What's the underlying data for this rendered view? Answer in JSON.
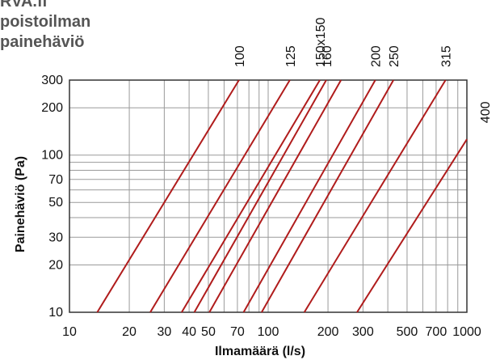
{
  "brand": {
    "lines": [
      "RVA.fi",
      "poistoilman",
      "painehäviö"
    ]
  },
  "chart_data": {
    "type": "line",
    "title": "",
    "xlabel": "Ilmamäärä (l/s)",
    "ylabel": "Painehäviö (Pa)",
    "x_scale": "log",
    "y_scale": "log",
    "xlim": [
      10,
      1000
    ],
    "ylim": [
      10,
      300
    ],
    "grid": true,
    "legend": "none",
    "line_color": "#b01c1c",
    "x_ticks": [
      10,
      20,
      30,
      40,
      50,
      70,
      100,
      200,
      300,
      500,
      700,
      1000
    ],
    "x_tick_labels": [
      "10",
      "20",
      "30",
      "40",
      "50",
      "70",
      "100",
      "200",
      "300",
      "500",
      "700",
      "1000"
    ],
    "y_ticks": [
      10,
      20,
      30,
      50,
      70,
      100,
      200,
      300
    ],
    "y_tick_labels": [
      "10",
      "20",
      "30",
      "50",
      "70",
      "100",
      "200",
      "300"
    ],
    "series": [
      {
        "name": "100",
        "x": [
          13.8,
          71.3
        ],
        "y": [
          10,
          300
        ]
      },
      {
        "name": "125",
        "x": [
          25.5,
          128.5
        ],
        "y": [
          10,
          300
        ]
      },
      {
        "name": "150x150",
        "x": [
          36.7,
          182
        ],
        "y": [
          10,
          300
        ]
      },
      {
        "name": "160",
        "x": [
          42.5,
          196
        ],
        "y": [
          10,
          300
        ]
      },
      {
        "name": "",
        "x": [
          50.6,
          232.5
        ],
        "y": [
          10,
          300
        ]
      },
      {
        "name": "200",
        "x": [
          75.2,
          346
        ],
        "y": [
          10,
          300
        ]
      },
      {
        "name": "250",
        "x": [
          92.7,
          427
        ],
        "y": [
          10,
          300
        ]
      },
      {
        "name": "315",
        "x": [
          152,
          781
        ],
        "y": [
          10,
          300
        ]
      },
      {
        "name": "400",
        "x": [
          280,
          1000
        ],
        "y": [
          10,
          126
        ]
      }
    ]
  }
}
